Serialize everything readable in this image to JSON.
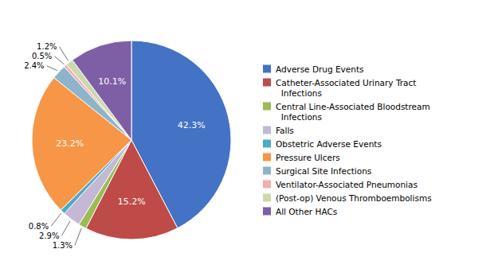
{
  "chart_data": {
    "type": "pie",
    "categories": [
      "Adverse Drug Events",
      "Catheter-Associated Urinary Tract\n  Infections",
      "Central Line-Associated Bloodstream\n  Infections",
      "Falls",
      "Obstetric Adverse Events",
      "Pressure Ulcers",
      "Surgical Site Infections",
      "Ventilator-Associated Pneumonias",
      "(Post-op) Venous Thromboembolisms",
      "All Other HACs"
    ],
    "values": [
      42.3,
      15.2,
      1.3,
      2.9,
      0.8,
      23.2,
      2.4,
      0.5,
      1.2,
      10.1
    ],
    "value_labels": [
      "42.3%",
      "15.2%",
      "1.3%",
      "2.9%",
      "0.8%",
      "23.2%",
      "2.4%",
      "0.5%",
      "1.2%",
      "10.1%"
    ],
    "colors": [
      "#4472C4",
      "#BE4B48",
      "#9BBB59",
      "#C4B8D5",
      "#4BACC6",
      "#F79646",
      "#8EB4CA",
      "#F2AEAC",
      "#CDD9AD",
      "#7E5FA6"
    ],
    "legend": "right"
  }
}
